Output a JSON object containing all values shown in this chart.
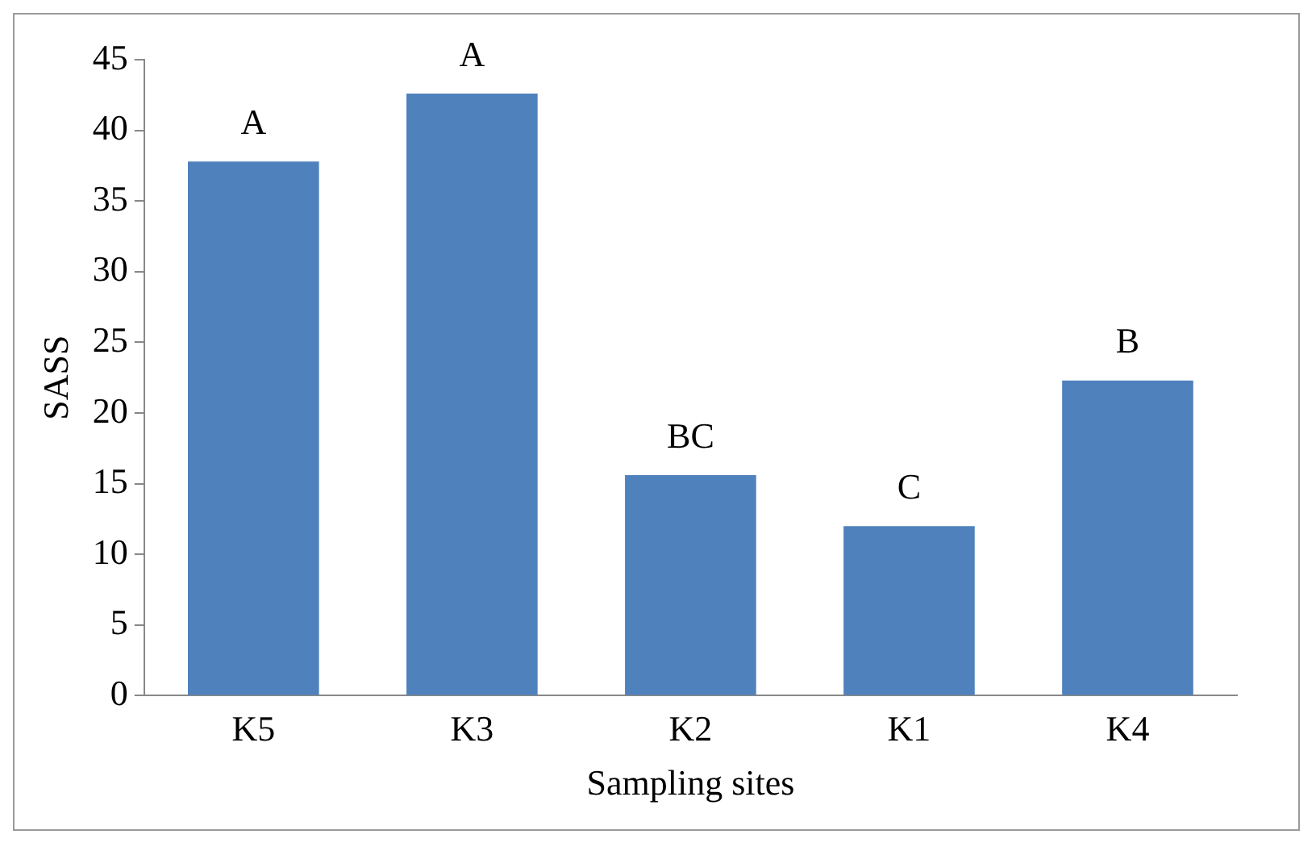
{
  "chart_data": {
    "type": "bar",
    "xlabel": "Sampling sites",
    "ylabel": "SASS",
    "categories": [
      "K5",
      "K3",
      "K2",
      "K1",
      "K4"
    ],
    "values": [
      37.8,
      42.6,
      15.6,
      12.0,
      22.3
    ],
    "color": "#4f81bd",
    "ylim": [
      0,
      45
    ],
    "yticks": [
      0,
      5,
      10,
      15,
      20,
      25,
      30,
      35,
      40,
      45
    ],
    "grid": false,
    "legend": false,
    "annotations": [
      {
        "text": "A",
        "x": "K5",
        "y": 37.8
      },
      {
        "text": "A",
        "x": "K3",
        "y": 42.6
      },
      {
        "text": "BC",
        "x": "K2",
        "y": 15.6
      },
      {
        "text": "C",
        "x": "K1",
        "y": 12.0
      },
      {
        "text": "B",
        "x": "K4",
        "y": 22.3
      }
    ]
  }
}
